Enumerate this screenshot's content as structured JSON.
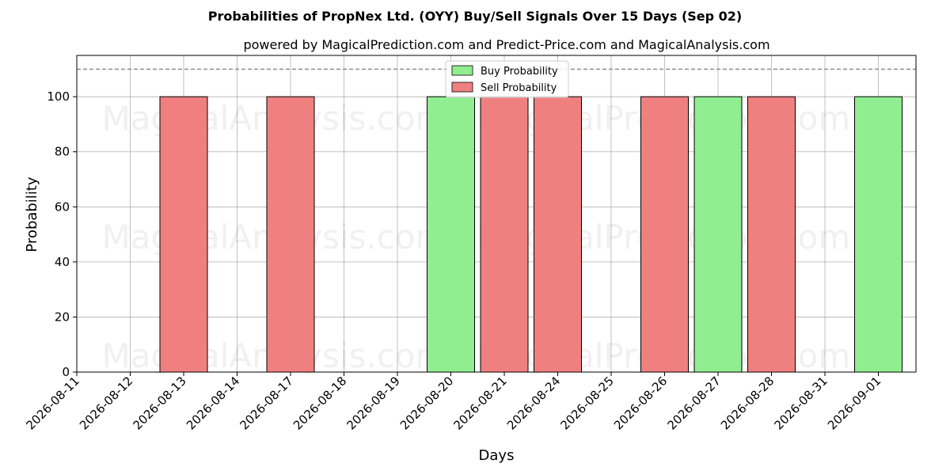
{
  "chart_data": {
    "type": "bar",
    "title": "Probabilities of PropNex Ltd. (OYY) Buy/Sell Signals Over 15 Days (Sep 02)",
    "subtitle": "powered by MagicalPrediction.com and Predict-Price.com and MagicalAnalysis.com",
    "xlabel": "Days",
    "ylabel": "Probability",
    "ylim": [
      0,
      115
    ],
    "yticks": [
      0,
      20,
      40,
      60,
      80,
      100
    ],
    "reference_line": 110,
    "grid": true,
    "legend_position": "top-center",
    "categories": [
      "2026-08-11",
      "2026-08-12",
      "2026-08-13",
      "2026-08-14",
      "2026-08-17",
      "2026-08-18",
      "2026-08-19",
      "2026-08-20",
      "2026-08-21",
      "2026-08-24",
      "2026-08-25",
      "2026-08-26",
      "2026-08-27",
      "2026-08-28",
      "2026-08-31",
      "2026-09-01"
    ],
    "bars": [
      {
        "series": "Sell Probability",
        "x": "2026-08-13",
        "value": 100
      },
      {
        "series": "Sell Probability",
        "x": "2026-08-17",
        "value": 100
      },
      {
        "series": "Buy Probability",
        "x": "2026-08-20",
        "value": 100
      },
      {
        "series": "Sell Probability",
        "x": "2026-08-21",
        "value": 100
      },
      {
        "series": "Sell Probability",
        "x": "2026-08-24",
        "value": 100
      },
      {
        "series": "Sell Probability",
        "x": "2026-08-26",
        "value": 100
      },
      {
        "series": "Buy Probability",
        "x": "2026-08-27",
        "value": 100
      },
      {
        "series": "Sell Probability",
        "x": "2026-08-28",
        "value": 100
      },
      {
        "series": "Buy Probability",
        "x": "2026-09-01",
        "value": 100
      }
    ],
    "series": [
      {
        "name": "Buy Probability",
        "color": "#90ee90"
      },
      {
        "name": "Sell Probability",
        "color": "#f08080"
      }
    ]
  },
  "watermarks": [
    "MagicalAnalysis.com",
    "MagicalPrediction.com"
  ]
}
